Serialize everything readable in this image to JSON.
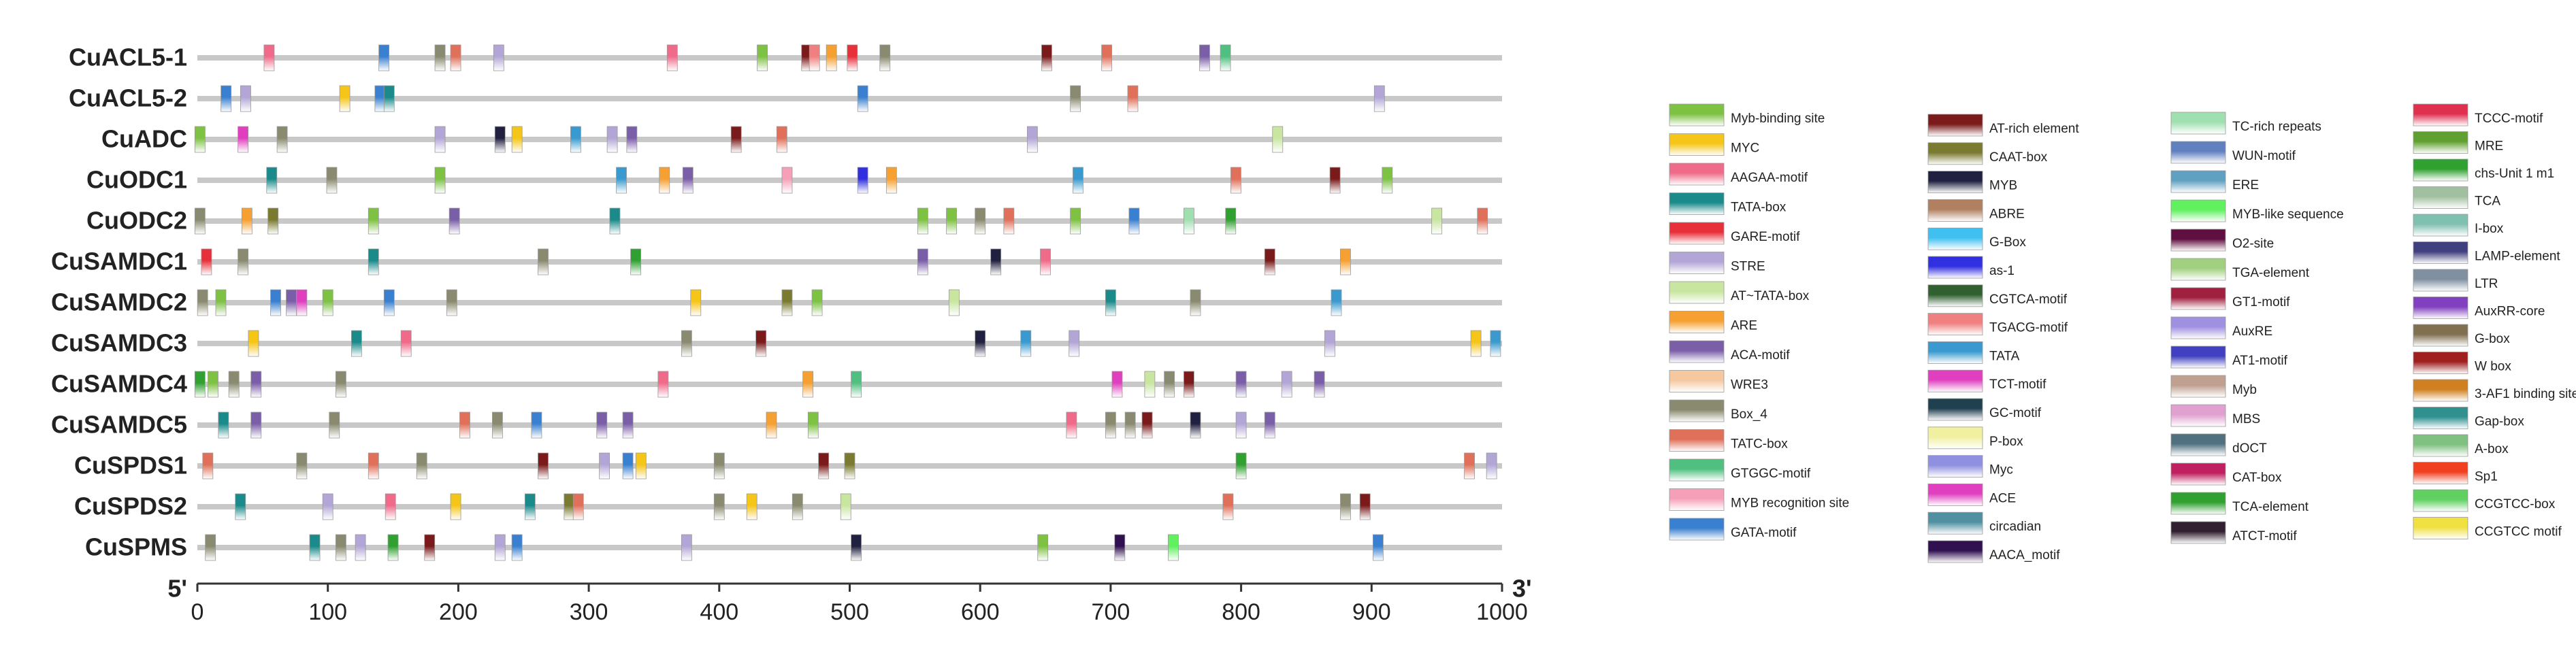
{
  "chart_data": {
    "type": "motif-map",
    "start_label": "5'",
    "end_label": "3'",
    "xlim": [
      0,
      1000
    ],
    "xticks": [
      0,
      100,
      200,
      300,
      400,
      500,
      600,
      700,
      800,
      900,
      1000
    ],
    "motifs": [
      {
        "name": "Myb-binding site",
        "color": "#7dc243"
      },
      {
        "name": "MYC",
        "color": "#f5c518"
      },
      {
        "name": "AAGAA-motif",
        "color": "#f06b8a"
      },
      {
        "name": "TATA-box",
        "color": "#1a8a8a"
      },
      {
        "name": "GARE-motif",
        "color": "#e8303a"
      },
      {
        "name": "STRE",
        "color": "#b3a6d6"
      },
      {
        "name": "AT~TATA-box",
        "color": "#c9e6a0"
      },
      {
        "name": "ARE",
        "color": "#f5a030"
      },
      {
        "name": "ACA-motif",
        "color": "#7b5ea8"
      },
      {
        "name": "WRE3",
        "color": "#f5c8a0"
      },
      {
        "name": "Box_4",
        "color": "#8a8a70"
      },
      {
        "name": "TATC-box",
        "color": "#e0705a"
      },
      {
        "name": "GTGGC-motif",
        "color": "#50c080"
      },
      {
        "name": "MYB recognition site",
        "color": "#f5a0b8"
      },
      {
        "name": "GATA-motif",
        "color": "#3a80d0"
      },
      {
        "name": "AT-rich element",
        "color": "#7a1a1a"
      },
      {
        "name": "CAAT-box",
        "color": "#7a7a30"
      },
      {
        "name": "MYB",
        "color": "#202040"
      },
      {
        "name": "ABRE",
        "color": "#b08060"
      },
      {
        "name": "G-Box",
        "color": "#40c0f0"
      },
      {
        "name": "as-1",
        "color": "#3030e0"
      },
      {
        "name": "CGTCA-motif",
        "color": "#306030"
      },
      {
        "name": "TGACG-motif",
        "color": "#f08080"
      },
      {
        "name": "TATA",
        "color": "#3a9ad0"
      },
      {
        "name": "TCT-motif",
        "color": "#e040c0"
      },
      {
        "name": "GC-motif",
        "color": "#204050"
      },
      {
        "name": "P-box",
        "color": "#f0f0a0"
      },
      {
        "name": "Myc",
        "color": "#9090e0"
      },
      {
        "name": "ACE",
        "color": "#e040c0"
      },
      {
        "name": "circadian",
        "color": "#5090a0"
      },
      {
        "name": "AACA_motif",
        "color": "#301050"
      },
      {
        "name": "TC-rich repeats",
        "color": "#a0e0b0"
      },
      {
        "name": "WUN-motif",
        "color": "#6080c0"
      },
      {
        "name": "ERE",
        "color": "#60a0c0"
      },
      {
        "name": "MYB-like sequence",
        "color": "#60f060"
      },
      {
        "name": "O2-site",
        "color": "#601040"
      },
      {
        "name": "TGA-element",
        "color": "#a0d080"
      },
      {
        "name": "GT1-motif",
        "color": "#a02040"
      },
      {
        "name": "AuxRE",
        "color": "#a090e0"
      },
      {
        "name": "AT1-motif",
        "color": "#4040c0"
      },
      {
        "name": "Myb",
        "color": "#c0a090"
      },
      {
        "name": "MBS",
        "color": "#e0a0d0"
      },
      {
        "name": "dOCT",
        "color": "#507080"
      },
      {
        "name": "CAT-box",
        "color": "#c02060"
      },
      {
        "name": "TCA-element",
        "color": "#30a030"
      },
      {
        "name": "ATCT-motif",
        "color": "#302030"
      },
      {
        "name": "TCCC-motif",
        "color": "#e03050"
      },
      {
        "name": "MRE",
        "color": "#60a030"
      },
      {
        "name": "chs-Unit 1 m1",
        "color": "#30a030"
      },
      {
        "name": "TCA",
        "color": "#a0c0a0"
      },
      {
        "name": "I-box",
        "color": "#80c0b0"
      },
      {
        "name": "LAMP-element",
        "color": "#404080"
      },
      {
        "name": "LTR",
        "color": "#8090a0"
      },
      {
        "name": "AuxRR-core",
        "color": "#8040c0"
      },
      {
        "name": "G-box",
        "color": "#807050"
      },
      {
        "name": "W box",
        "color": "#a02020"
      },
      {
        "name": "3-AF1 binding site",
        "color": "#d08020"
      },
      {
        "name": "Gap-box",
        "color": "#309090"
      },
      {
        "name": "A-box",
        "color": "#80c080"
      },
      {
        "name": "Sp1",
        "color": "#f04020"
      },
      {
        "name": "CCGTCC-box",
        "color": "#60d060"
      },
      {
        "name": "CCGTCC motif",
        "color": "#f0e040"
      }
    ],
    "genes": [
      {
        "name": "CuACL5-1",
        "elements": [
          {
            "motif": "AAGAA-motif",
            "x": 55
          },
          {
            "motif": "GATA-motif",
            "x": 143
          },
          {
            "motif": "Box_4",
            "x": 186
          },
          {
            "motif": "TATC-box",
            "x": 198
          },
          {
            "motif": "STRE",
            "x": 231
          },
          {
            "motif": "AAGAA-motif",
            "x": 364
          },
          {
            "motif": "Myb-binding site",
            "x": 433
          },
          {
            "motif": "AT-rich element",
            "x": 467
          },
          {
            "motif": "TGACG-motif",
            "x": 473
          },
          {
            "motif": "ARE",
            "x": 486
          },
          {
            "motif": "GARE-motif",
            "x": 502
          },
          {
            "motif": "Box_4",
            "x": 527
          },
          {
            "motif": "AT-rich element",
            "x": 651
          },
          {
            "motif": "TATC-box",
            "x": 697
          },
          {
            "motif": "ACA-motif",
            "x": 772
          },
          {
            "motif": "GTGGC-motif",
            "x": 788
          }
        ]
      },
      {
        "name": "CuACL5-2",
        "elements": [
          {
            "motif": "GATA-motif",
            "x": 22
          },
          {
            "motif": "STRE",
            "x": 37
          },
          {
            "motif": "MYC",
            "x": 113
          },
          {
            "motif": "GATA-motif",
            "x": 140
          },
          {
            "motif": "TATA-box",
            "x": 147
          },
          {
            "motif": "GATA-motif",
            "x": 510
          },
          {
            "motif": "Box_4",
            "x": 673
          },
          {
            "motif": "TATC-box",
            "x": 717
          },
          {
            "motif": "STRE",
            "x": 906
          }
        ]
      },
      {
        "name": "CuADC",
        "elements": [
          {
            "motif": "Myb-binding site",
            "x": 2
          },
          {
            "motif": "TCT-motif",
            "x": 35
          },
          {
            "motif": "Box_4",
            "x": 65
          },
          {
            "motif": "STRE",
            "x": 186
          },
          {
            "motif": "MYB",
            "x": 232
          },
          {
            "motif": "MYC",
            "x": 245
          },
          {
            "motif": "TATA",
            "x": 290
          },
          {
            "motif": "STRE",
            "x": 318
          },
          {
            "motif": "ACA-motif",
            "x": 333
          },
          {
            "motif": "AT-rich element",
            "x": 413
          },
          {
            "motif": "TATC-box",
            "x": 448
          },
          {
            "motif": "STRE",
            "x": 640
          },
          {
            "motif": "AT~TATA-box",
            "x": 828
          }
        ]
      },
      {
        "name": "CuODC1",
        "elements": [
          {
            "motif": "TATA-box",
            "x": 57
          },
          {
            "motif": "Box_4",
            "x": 103
          },
          {
            "motif": "Myb-binding site",
            "x": 186
          },
          {
            "motif": "TATA",
            "x": 325
          },
          {
            "motif": "ARE",
            "x": 358
          },
          {
            "motif": "ACA-motif",
            "x": 376
          },
          {
            "motif": "MYB recognition site",
            "x": 452
          },
          {
            "motif": "as-1",
            "x": 510
          },
          {
            "motif": "ARE",
            "x": 532
          },
          {
            "motif": "TATA",
            "x": 675
          },
          {
            "motif": "TATC-box",
            "x": 796
          },
          {
            "motif": "AT-rich element",
            "x": 872
          },
          {
            "motif": "Myb-binding site",
            "x": 912
          }
        ]
      },
      {
        "name": "CuODC2",
        "elements": [
          {
            "motif": "Box_4",
            "x": 2
          },
          {
            "motif": "ARE",
            "x": 38
          },
          {
            "motif": "CAAT-box",
            "x": 58
          },
          {
            "motif": "Myb-binding site",
            "x": 135
          },
          {
            "motif": "ACA-motif",
            "x": 197
          },
          {
            "motif": "TATA-box",
            "x": 320
          },
          {
            "motif": "Myb-binding site",
            "x": 556
          },
          {
            "motif": "Myb-binding site",
            "x": 578
          },
          {
            "motif": "Box_4",
            "x": 600
          },
          {
            "motif": "TATC-box",
            "x": 622
          },
          {
            "motif": "Myb-binding site",
            "x": 673
          },
          {
            "motif": "GATA-motif",
            "x": 718
          },
          {
            "motif": "TC-rich repeats",
            "x": 760
          },
          {
            "motif": "TCA-element",
            "x": 792
          },
          {
            "motif": "AT~TATA-box",
            "x": 950
          },
          {
            "motif": "TATC-box",
            "x": 985
          }
        ]
      },
      {
        "name": "CuSAMDC1",
        "elements": [
          {
            "motif": "GARE-motif",
            "x": 7
          },
          {
            "motif": "Box_4",
            "x": 35
          },
          {
            "motif": "TATA-box",
            "x": 135
          },
          {
            "motif": "Box_4",
            "x": 265
          },
          {
            "motif": "TCA-element",
            "x": 336
          },
          {
            "motif": "ACA-motif",
            "x": 556
          },
          {
            "motif": "MYB",
            "x": 612
          },
          {
            "motif": "AAGAA-motif",
            "x": 650
          },
          {
            "motif": "AT-rich element",
            "x": 822
          },
          {
            "motif": "ARE",
            "x": 880
          }
        ]
      },
      {
        "name": "CuSAMDC2",
        "elements": [
          {
            "motif": "Box_4",
            "x": 4
          },
          {
            "motif": "Myb-binding site",
            "x": 18
          },
          {
            "motif": "GATA-motif",
            "x": 60
          },
          {
            "motif": "ACA-motif",
            "x": 72
          },
          {
            "motif": "TCT-motif",
            "x": 80
          },
          {
            "motif": "Myb-binding site",
            "x": 100
          },
          {
            "motif": "GATA-motif",
            "x": 147
          },
          {
            "motif": "Box_4",
            "x": 195
          },
          {
            "motif": "MYC",
            "x": 382
          },
          {
            "motif": "CAAT-box",
            "x": 452
          },
          {
            "motif": "Myb-binding site",
            "x": 475
          },
          {
            "motif": "AT~TATA-box",
            "x": 580
          },
          {
            "motif": "TATA-box",
            "x": 700
          },
          {
            "motif": "Box_4",
            "x": 765
          },
          {
            "motif": "TATA",
            "x": 873
          }
        ]
      },
      {
        "name": "CuSAMDC3",
        "elements": [
          {
            "motif": "MYC",
            "x": 43
          },
          {
            "motif": "TATA-box",
            "x": 122
          },
          {
            "motif": "AAGAA-motif",
            "x": 160
          },
          {
            "motif": "Box_4",
            "x": 375
          },
          {
            "motif": "AT-rich element",
            "x": 432
          },
          {
            "motif": "MYB",
            "x": 600
          },
          {
            "motif": "TATA",
            "x": 635
          },
          {
            "motif": "STRE",
            "x": 672
          },
          {
            "motif": "STRE",
            "x": 868
          },
          {
            "motif": "MYC",
            "x": 980
          },
          {
            "motif": "TATA",
            "x": 995
          }
        ]
      },
      {
        "name": "CuSAMDC4",
        "elements": [
          {
            "motif": "TCA-element",
            "x": 2
          },
          {
            "motif": "Myb-binding site",
            "x": 12
          },
          {
            "motif": "Box_4",
            "x": 28
          },
          {
            "motif": "ACA-motif",
            "x": 45
          },
          {
            "motif": "Box_4",
            "x": 110
          },
          {
            "motif": "AAGAA-motif",
            "x": 357
          },
          {
            "motif": "ARE",
            "x": 468
          },
          {
            "motif": "GTGGC-motif",
            "x": 505
          },
          {
            "motif": "TCT-motif",
            "x": 705
          },
          {
            "motif": "AT~TATA-box",
            "x": 730
          },
          {
            "motif": "Box_4",
            "x": 745
          },
          {
            "motif": "AT-rich element",
            "x": 760
          },
          {
            "motif": "ACA-motif",
            "x": 800
          },
          {
            "motif": "STRE",
            "x": 835
          },
          {
            "motif": "ACA-motif",
            "x": 860
          }
        ]
      },
      {
        "name": "CuSAMDC5",
        "elements": [
          {
            "motif": "TATA-box",
            "x": 20
          },
          {
            "motif": "ACA-motif",
            "x": 45
          },
          {
            "motif": "Box_4",
            "x": 105
          },
          {
            "motif": "TATC-box",
            "x": 205
          },
          {
            "motif": "Box_4",
            "x": 230
          },
          {
            "motif": "GATA-motif",
            "x": 260
          },
          {
            "motif": "ACA-motif",
            "x": 310
          },
          {
            "motif": "ACA-motif",
            "x": 330
          },
          {
            "motif": "ARE",
            "x": 440
          },
          {
            "motif": "Myb-binding site",
            "x": 472
          },
          {
            "motif": "AAGAA-motif",
            "x": 670
          },
          {
            "motif": "Box_4",
            "x": 700
          },
          {
            "motif": "Box_4",
            "x": 715
          },
          {
            "motif": "AT-rich element",
            "x": 728
          },
          {
            "motif": "MYB",
            "x": 765
          },
          {
            "motif": "STRE",
            "x": 800
          },
          {
            "motif": "ACA-motif",
            "x": 822
          }
        ]
      },
      {
        "name": "CuSPDS1",
        "elements": [
          {
            "motif": "TATC-box",
            "x": 8
          },
          {
            "motif": "Box_4",
            "x": 80
          },
          {
            "motif": "TATC-box",
            "x": 135
          },
          {
            "motif": "Box_4",
            "x": 172
          },
          {
            "motif": "AT-rich element",
            "x": 265
          },
          {
            "motif": "STRE",
            "x": 312
          },
          {
            "motif": "GATA-motif",
            "x": 330
          },
          {
            "motif": "MYC",
            "x": 340
          },
          {
            "motif": "Box_4",
            "x": 400
          },
          {
            "motif": "AT-rich element",
            "x": 480
          },
          {
            "motif": "CAAT-box",
            "x": 500
          },
          {
            "motif": "TCA-element",
            "x": 800
          },
          {
            "motif": "TATC-box",
            "x": 975
          },
          {
            "motif": "STRE",
            "x": 992
          }
        ]
      },
      {
        "name": "CuSPDS2",
        "elements": [
          {
            "motif": "TATA-box",
            "x": 33
          },
          {
            "motif": "STRE",
            "x": 100
          },
          {
            "motif": "AAGAA-motif",
            "x": 148
          },
          {
            "motif": "MYC",
            "x": 198
          },
          {
            "motif": "TATA-box",
            "x": 255
          },
          {
            "motif": "CAAT-box",
            "x": 285
          },
          {
            "motif": "TATC-box",
            "x": 292
          },
          {
            "motif": "Box_4",
            "x": 400
          },
          {
            "motif": "MYC",
            "x": 425
          },
          {
            "motif": "Box_4",
            "x": 460
          },
          {
            "motif": "AT~TATA-box",
            "x": 497
          },
          {
            "motif": "TATC-box",
            "x": 790
          },
          {
            "motif": "Box_4",
            "x": 880
          },
          {
            "motif": "AT-rich element",
            "x": 895
          }
        ]
      },
      {
        "name": "CuSPMS",
        "elements": [
          {
            "motif": "Box_4",
            "x": 10
          },
          {
            "motif": "TATA-box",
            "x": 90
          },
          {
            "motif": "Box_4",
            "x": 110
          },
          {
            "motif": "STRE",
            "x": 125
          },
          {
            "motif": "TCA-element",
            "x": 150
          },
          {
            "motif": "AT-rich element",
            "x": 178
          },
          {
            "motif": "STRE",
            "x": 232
          },
          {
            "motif": "GATA-motif",
            "x": 245
          },
          {
            "motif": "STRE",
            "x": 375
          },
          {
            "motif": "MYB",
            "x": 505
          },
          {
            "motif": "Myb-binding site",
            "x": 648
          },
          {
            "motif": "AACA_motif",
            "x": 707
          },
          {
            "motif": "MYB-like sequence",
            "x": 748
          },
          {
            "motif": "GATA-motif",
            "x": 905
          }
        ]
      }
    ]
  }
}
